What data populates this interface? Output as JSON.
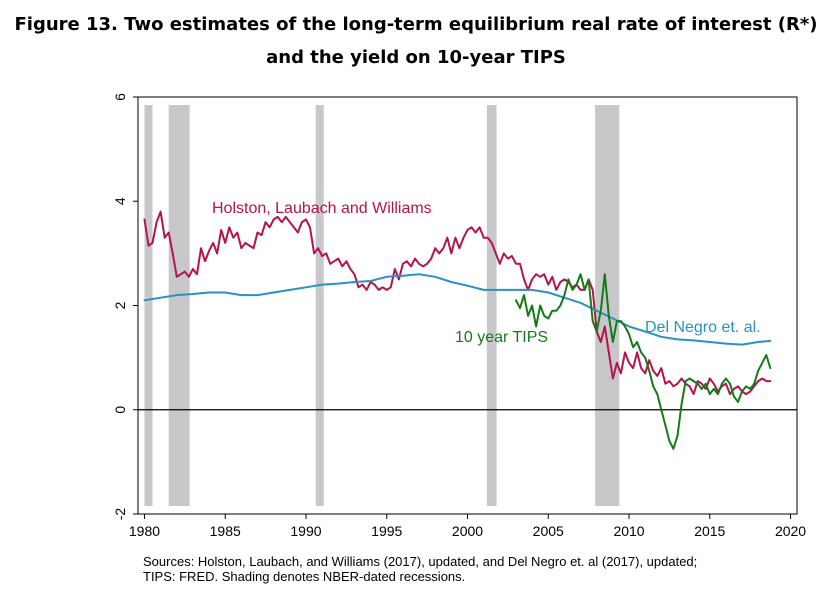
{
  "figure": {
    "title_line1": "Figure 13. Two estimates of the long-term equilibrium real rate of interest (R*)",
    "title_line2": "and the yield on 10-year TIPS",
    "source_line1": "Sources: Holston, Laubach, and Williams (2017), updated, and Del Negro et. al (2017), updated;",
    "source_line2": "TIPS: FRED. Shading denotes NBER-dated recessions."
  },
  "chart_data": {
    "type": "line",
    "title": "Two estimates of the long-term equilibrium real rate of interest (R*) and the yield on 10-year TIPS",
    "xlabel": "",
    "ylabel": "",
    "xlim": [
      1979.6,
      2020.4
    ],
    "ylim": [
      -2,
      6
    ],
    "xticks": [
      1980,
      1985,
      1990,
      1995,
      2000,
      2005,
      2010,
      2015,
      2020
    ],
    "yticks": [
      -2,
      0,
      2,
      4,
      6
    ],
    "zero_line": 0,
    "grid": false,
    "recessions": [
      {
        "start": 1980.0,
        "end": 1980.5
      },
      {
        "start": 1981.5,
        "end": 1982.8
      },
      {
        "start": 1990.6,
        "end": 1991.1
      },
      {
        "start": 2001.2,
        "end": 2001.8
      },
      {
        "start": 2007.9,
        "end": 2009.4
      }
    ],
    "series": [
      {
        "name": "Holston, Laubach and Williams",
        "color": "#b5134f",
        "x": [
          1980.0,
          1980.25,
          1980.5,
          1980.75,
          1981.0,
          1981.25,
          1981.5,
          1981.75,
          1982.0,
          1982.25,
          1982.5,
          1982.75,
          1983.0,
          1983.25,
          1983.5,
          1983.75,
          1984.0,
          1984.25,
          1984.5,
          1984.75,
          1985.0,
          1985.25,
          1985.5,
          1985.75,
          1986.0,
          1986.25,
          1986.5,
          1986.75,
          1987.0,
          1987.25,
          1987.5,
          1987.75,
          1988.0,
          1988.25,
          1988.5,
          1988.75,
          1989.0,
          1989.25,
          1989.5,
          1989.75,
          1990.0,
          1990.25,
          1990.5,
          1990.75,
          1991.0,
          1991.25,
          1991.5,
          1991.75,
          1992.0,
          1992.25,
          1992.5,
          1992.75,
          1993.0,
          1993.25,
          1993.5,
          1993.75,
          1994.0,
          1994.25,
          1994.5,
          1994.75,
          1995.0,
          1995.25,
          1995.5,
          1995.75,
          1996.0,
          1996.25,
          1996.5,
          1996.75,
          1997.0,
          1997.25,
          1997.5,
          1997.75,
          1998.0,
          1998.25,
          1998.5,
          1998.75,
          1999.0,
          1999.25,
          1999.5,
          1999.75,
          2000.0,
          2000.25,
          2000.5,
          2000.75,
          2001.0,
          2001.25,
          2001.5,
          2001.75,
          2002.0,
          2002.25,
          2002.5,
          2002.75,
          2003.0,
          2003.25,
          2003.5,
          2003.75,
          2004.0,
          2004.25,
          2004.5,
          2004.75,
          2005.0,
          2005.25,
          2005.5,
          2005.75,
          2006.0,
          2006.25,
          2006.5,
          2006.75,
          2007.0,
          2007.25,
          2007.5,
          2007.75,
          2008.0,
          2008.25,
          2008.5,
          2008.75,
          2009.0,
          2009.25,
          2009.5,
          2009.75,
          2010.0,
          2010.25,
          2010.5,
          2010.75,
          2011.0,
          2011.25,
          2011.5,
          2011.75,
          2012.0,
          2012.25,
          2012.5,
          2012.75,
          2013.0,
          2013.25,
          2013.5,
          2013.75,
          2014.0,
          2014.25,
          2014.5,
          2014.75,
          2015.0,
          2015.25,
          2015.5,
          2015.75,
          2016.0,
          2016.25,
          2016.5,
          2016.75,
          2017.0,
          2017.25,
          2017.5,
          2017.75,
          2018.0,
          2018.25,
          2018.5,
          2018.75
        ],
        "values": [
          3.65,
          3.15,
          3.2,
          3.6,
          3.8,
          3.3,
          3.4,
          3.0,
          2.55,
          2.6,
          2.65,
          2.55,
          2.7,
          2.6,
          3.1,
          2.85,
          3.05,
          3.2,
          3.0,
          3.45,
          3.2,
          3.5,
          3.3,
          3.4,
          3.1,
          3.2,
          3.15,
          3.1,
          3.4,
          3.35,
          3.6,
          3.5,
          3.65,
          3.7,
          3.6,
          3.7,
          3.6,
          3.5,
          3.4,
          3.6,
          3.65,
          3.5,
          3.0,
          3.1,
          2.95,
          3.0,
          2.8,
          2.85,
          2.9,
          2.75,
          2.85,
          2.7,
          2.6,
          2.35,
          2.4,
          2.3,
          2.45,
          2.4,
          2.3,
          2.35,
          2.3,
          2.35,
          2.7,
          2.5,
          2.8,
          2.85,
          2.75,
          2.9,
          2.8,
          2.75,
          2.8,
          2.9,
          3.1,
          3.0,
          3.1,
          3.3,
          3.0,
          3.3,
          3.1,
          3.3,
          3.45,
          3.5,
          3.4,
          3.5,
          3.3,
          3.3,
          3.2,
          3.0,
          2.8,
          3.0,
          2.9,
          2.95,
          2.8,
          2.8,
          2.5,
          2.3,
          2.5,
          2.6,
          2.55,
          2.6,
          2.4,
          2.55,
          2.3,
          2.45,
          2.5,
          2.45,
          2.35,
          2.4,
          2.3,
          2.3,
          2.5,
          2.3,
          1.5,
          1.3,
          1.6,
          1.1,
          0.6,
          0.9,
          0.7,
          1.1,
          0.9,
          0.8,
          1.1,
          0.8,
          0.7,
          0.95,
          0.75,
          0.65,
          0.8,
          0.5,
          0.55,
          0.45,
          0.5,
          0.6,
          0.5,
          0.45,
          0.3,
          0.55,
          0.5,
          0.4,
          0.6,
          0.5,
          0.35,
          0.45,
          0.5,
          0.3,
          0.4,
          0.45,
          0.35,
          0.3,
          0.35,
          0.45,
          0.55,
          0.6,
          0.55,
          0.55
        ]
      },
      {
        "name": "Del Negro et. al.",
        "color": "#2a91c0",
        "x": [
          1980.0,
          1981.0,
          1982.0,
          1983.0,
          1984.0,
          1985.0,
          1986.0,
          1987.0,
          1988.0,
          1989.0,
          1990.0,
          1991.0,
          1992.0,
          1993.0,
          1994.0,
          1995.0,
          1996.0,
          1997.0,
          1998.0,
          1999.0,
          2000.0,
          2001.0,
          2002.0,
          2003.0,
          2004.0,
          2005.0,
          2006.0,
          2007.0,
          2008.0,
          2009.0,
          2010.0,
          2011.0,
          2012.0,
          2013.0,
          2014.0,
          2015.0,
          2016.0,
          2017.0,
          2018.0,
          2018.75
        ],
        "values": [
          2.1,
          2.15,
          2.2,
          2.22,
          2.25,
          2.25,
          2.2,
          2.2,
          2.25,
          2.3,
          2.35,
          2.4,
          2.42,
          2.45,
          2.47,
          2.55,
          2.57,
          2.6,
          2.55,
          2.45,
          2.38,
          2.3,
          2.3,
          2.3,
          2.3,
          2.25,
          2.15,
          2.05,
          1.9,
          1.75,
          1.6,
          1.5,
          1.4,
          1.35,
          1.33,
          1.3,
          1.27,
          1.25,
          1.3,
          1.32
        ]
      },
      {
        "name": "10 year TIPS",
        "color": "#157a17",
        "x": [
          2003.0,
          2003.25,
          2003.5,
          2003.75,
          2004.0,
          2004.25,
          2004.5,
          2004.75,
          2005.0,
          2005.25,
          2005.5,
          2005.75,
          2006.0,
          2006.25,
          2006.5,
          2006.75,
          2007.0,
          2007.25,
          2007.5,
          2007.75,
          2008.0,
          2008.25,
          2008.5,
          2008.75,
          2009.0,
          2009.25,
          2009.5,
          2009.75,
          2010.0,
          2010.25,
          2010.5,
          2010.75,
          2011.0,
          2011.25,
          2011.5,
          2011.75,
          2012.0,
          2012.25,
          2012.5,
          2012.75,
          2013.0,
          2013.25,
          2013.5,
          2013.75,
          2014.0,
          2014.25,
          2014.5,
          2014.75,
          2015.0,
          2015.25,
          2015.5,
          2015.75,
          2016.0,
          2016.25,
          2016.5,
          2016.75,
          2017.0,
          2017.25,
          2017.5,
          2017.75,
          2018.0,
          2018.25,
          2018.5,
          2018.75
        ],
        "values": [
          2.1,
          1.95,
          2.2,
          1.8,
          2.0,
          1.6,
          2.0,
          1.8,
          1.75,
          1.9,
          1.9,
          2.0,
          2.2,
          2.5,
          2.3,
          2.4,
          2.6,
          2.3,
          2.5,
          1.7,
          1.5,
          1.9,
          2.6,
          1.8,
          1.3,
          1.7,
          1.7,
          1.6,
          1.45,
          1.2,
          1.3,
          1.1,
          1.0,
          0.75,
          0.45,
          0.3,
          0.0,
          -0.3,
          -0.6,
          -0.75,
          -0.5,
          0.1,
          0.55,
          0.6,
          0.55,
          0.5,
          0.4,
          0.5,
          0.3,
          0.4,
          0.3,
          0.5,
          0.6,
          0.5,
          0.25,
          0.15,
          0.35,
          0.45,
          0.4,
          0.5,
          0.75,
          0.9,
          1.05,
          0.8
        ]
      }
    ],
    "annotations": [
      {
        "text": "Holston, Laubach and Williams",
        "series": "Holston, Laubach and Williams"
      },
      {
        "text": "Del Negro et. al.",
        "series": "Del Negro et. al."
      },
      {
        "text": "10 year TIPS",
        "series": "10 year TIPS"
      }
    ]
  }
}
